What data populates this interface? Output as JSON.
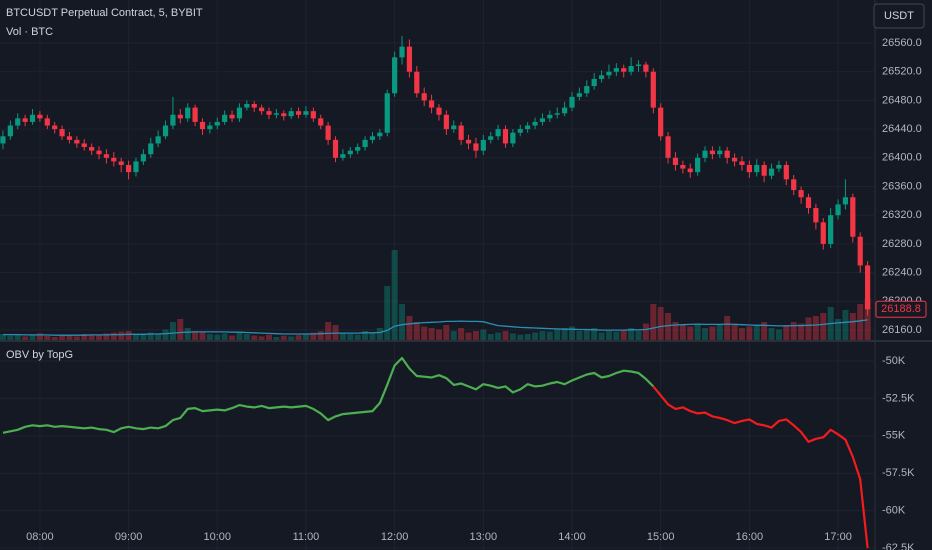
{
  "header": {
    "currency": "USDT"
  },
  "chart_data": [
    {
      "type": "candlestick",
      "title": "BTCUSDT Perpetual Contract, 5, BYBIT",
      "up_color": "#089981",
      "down_color": "#f23645",
      "x": [
        455,
        460,
        465,
        470,
        475,
        480,
        485,
        490,
        495,
        500,
        505,
        510,
        515,
        520,
        525,
        530,
        535,
        540,
        545,
        550,
        555,
        560,
        565,
        570,
        575,
        580,
        585,
        590,
        595,
        600,
        605,
        610,
        615,
        620,
        625,
        630,
        635,
        640,
        645,
        650,
        655,
        660,
        665,
        670,
        675,
        680,
        685,
        690,
        695,
        700,
        705,
        710,
        715,
        720,
        725,
        730,
        735,
        740,
        745,
        750,
        755,
        760,
        765,
        770,
        775,
        780,
        785,
        790,
        795,
        800,
        805,
        810,
        815,
        820,
        825,
        830,
        835,
        840,
        845,
        850,
        855,
        860,
        865,
        870,
        875,
        880,
        885,
        890,
        895,
        900,
        905,
        910,
        915,
        920,
        925,
        930,
        935,
        940,
        945,
        950,
        955,
        960,
        965,
        970,
        975,
        980,
        985,
        990,
        995,
        1000,
        1005,
        1010,
        1015,
        1020,
        1025,
        1030,
        1035,
        1040
      ],
      "open": [
        26420,
        26430,
        26445,
        26455,
        26450,
        26460,
        26455,
        26445,
        26440,
        26430,
        26425,
        26420,
        26415,
        26410,
        26405,
        26400,
        26395,
        26390,
        26380,
        26395,
        26405,
        26420,
        26430,
        26445,
        26460,
        26455,
        26470,
        26450,
        26440,
        26445,
        26450,
        26460,
        26455,
        26470,
        26475,
        26470,
        26465,
        26460,
        26462,
        26458,
        26465,
        26460,
        26465,
        26455,
        26445,
        26425,
        26400,
        26405,
        26410,
        26415,
        26425,
        26430,
        26435,
        26490,
        26540,
        26555,
        26520,
        26490,
        26480,
        26470,
        26460,
        26440,
        26445,
        26425,
        26420,
        26410,
        26425,
        26430,
        26440,
        26420,
        26435,
        26440,
        26445,
        26450,
        26455,
        26460,
        26462,
        26470,
        26485,
        26490,
        26500,
        26510,
        26515,
        26520,
        26525,
        26520,
        26528,
        26530,
        26520,
        26470,
        26430,
        26400,
        26390,
        26385,
        26380,
        26400,
        26410,
        26405,
        26410,
        26400,
        26395,
        26390,
        26380,
        26390,
        26375,
        26385,
        26390,
        26370,
        26355,
        26345,
        26330,
        26310,
        26280,
        26320,
        26335,
        26345,
        26290,
        26250
      ],
      "high": [
        26438,
        26452,
        26462,
        26460,
        26468,
        26465,
        26460,
        26450,
        26445,
        26436,
        26430,
        26426,
        26420,
        26416,
        26412,
        26408,
        26400,
        26396,
        26400,
        26412,
        26428,
        26438,
        26452,
        26485,
        26468,
        26476,
        26474,
        26455,
        26450,
        26456,
        26466,
        26466,
        26476,
        26480,
        26479,
        26474,
        26470,
        26468,
        26466,
        26470,
        26470,
        26472,
        26470,
        26460,
        26450,
        26430,
        26412,
        26415,
        26420,
        26430,
        26436,
        26440,
        26495,
        26548,
        26570,
        26565,
        26528,
        26498,
        26488,
        26475,
        26466,
        26452,
        26450,
        26432,
        26428,
        26432,
        26436,
        26446,
        26445,
        26440,
        26446,
        26450,
        26456,
        26462,
        26466,
        26470,
        26478,
        26492,
        26498,
        26508,
        26518,
        26522,
        26530,
        26532,
        26530,
        26540,
        26536,
        26534,
        26525,
        26476,
        26436,
        26408,
        26396,
        26392,
        26406,
        26416,
        26416,
        26416,
        26415,
        26406,
        26402,
        26396,
        26398,
        26395,
        26392,
        26396,
        26395,
        26376,
        26360,
        26350,
        26336,
        26316,
        26330,
        26342,
        26370,
        26350,
        26296,
        26256
      ],
      "low": [
        26412,
        26425,
        26440,
        26444,
        26446,
        26450,
        26440,
        26434,
        26425,
        26420,
        26414,
        26410,
        26404,
        26398,
        26392,
        26388,
        26380,
        26370,
        26374,
        26390,
        26400,
        26415,
        26426,
        26440,
        26448,
        26450,
        26444,
        26432,
        26434,
        26440,
        26446,
        26450,
        26450,
        26466,
        26464,
        26460,
        26454,
        26455,
        26452,
        26454,
        26455,
        26456,
        26450,
        26440,
        26418,
        26394,
        26396,
        26400,
        26405,
        26410,
        26420,
        26425,
        26430,
        26485,
        26530,
        26512,
        26484,
        26472,
        26462,
        26452,
        26432,
        26435,
        26418,
        26412,
        26400,
        26404,
        26420,
        26425,
        26414,
        26415,
        26430,
        26435,
        26440,
        26445,
        26450,
        26455,
        26458,
        26465,
        26480,
        26485,
        26495,
        26505,
        26510,
        26514,
        26512,
        26515,
        26520,
        26512,
        26462,
        26424,
        26392,
        26382,
        26378,
        26372,
        26375,
        26394,
        26398,
        26400,
        26392,
        26388,
        26382,
        26372,
        26374,
        26366,
        26370,
        26380,
        26362,
        26348,
        26336,
        26322,
        26300,
        26272,
        26274,
        26314,
        26328,
        26282,
        26240,
        26180
      ],
      "close": [
        26430,
        26445,
        26455,
        26450,
        26460,
        26455,
        26445,
        26440,
        26430,
        26425,
        26420,
        26415,
        26410,
        26405,
        26400,
        26395,
        26390,
        26380,
        26395,
        26405,
        26420,
        26430,
        26445,
        26460,
        26455,
        26470,
        26450,
        26440,
        26445,
        26450,
        26460,
        26455,
        26470,
        26475,
        26470,
        26465,
        26460,
        26462,
        26458,
        26465,
        26460,
        26465,
        26455,
        26445,
        26425,
        26400,
        26405,
        26410,
        26415,
        26425,
        26430,
        26435,
        26490,
        26540,
        26555,
        26520,
        26490,
        26480,
        26470,
        26460,
        26440,
        26445,
        26425,
        26420,
        26410,
        26425,
        26430,
        26440,
        26420,
        26435,
        26440,
        26445,
        26450,
        26455,
        26460,
        26462,
        26470,
        26485,
        26490,
        26500,
        26510,
        26515,
        26520,
        26525,
        26520,
        26528,
        26530,
        26520,
        26470,
        26430,
        26400,
        26390,
        26385,
        26380,
        26400,
        26410,
        26405,
        26410,
        26400,
        26395,
        26390,
        26380,
        26390,
        26375,
        26385,
        26390,
        26370,
        26355,
        26345,
        26330,
        26310,
        26280,
        26320,
        26335,
        26345,
        26290,
        26250,
        26188.8
      ],
      "xlim": [
        453,
        1045
      ],
      "ylim": [
        26146,
        26620
      ],
      "yticks": [
        {
          "value": 26160,
          "label": "26160.0"
        },
        {
          "value": 26200,
          "label": "26200.0"
        },
        {
          "value": 26240,
          "label": "26240.0"
        },
        {
          "value": 26280,
          "label": "26280.0"
        },
        {
          "value": 26320,
          "label": "26320.0"
        },
        {
          "value": 26360,
          "label": "26360.0"
        },
        {
          "value": 26400,
          "label": "26400.0"
        },
        {
          "value": 26440,
          "label": "26440.0"
        },
        {
          "value": 26480,
          "label": "26480.0"
        },
        {
          "value": 26520,
          "label": "26520.0"
        },
        {
          "value": 26560,
          "label": "26560.0"
        }
      ],
      "grid": true
    },
    {
      "type": "volume",
      "title": "Vol · BTC",
      "up_color": "rgba(8,153,129,0.38)",
      "down_color": "rgba(242,54,69,0.38)",
      "ma_color": "#2a8fb5",
      "values": [
        20,
        15,
        18,
        12,
        15,
        22,
        14,
        10,
        16,
        18,
        12,
        20,
        15,
        18,
        22,
        25,
        28,
        30,
        18,
        22,
        25,
        20,
        35,
        60,
        70,
        40,
        30,
        25,
        20,
        18,
        22,
        15,
        28,
        20,
        15,
        12,
        18,
        10,
        14,
        12,
        16,
        18,
        25,
        30,
        60,
        50,
        25,
        20,
        18,
        30,
        22,
        40,
        180,
        300,
        120,
        80,
        60,
        45,
        40,
        35,
        50,
        30,
        40,
        25,
        30,
        35,
        20,
        25,
        30,
        22,
        18,
        20,
        25,
        30,
        28,
        35,
        40,
        45,
        30,
        35,
        40,
        25,
        30,
        28,
        35,
        40,
        30,
        55,
        120,
        110,
        90,
        60,
        50,
        45,
        55,
        40,
        45,
        50,
        80,
        55,
        40,
        45,
        50,
        60,
        40,
        35,
        50,
        60,
        55,
        75,
        80,
        90,
        110,
        70,
        100,
        90,
        120,
        140
      ],
      "ma_values": [
        18,
        18,
        18,
        17,
        17,
        17,
        17,
        16,
        16,
        16,
        16,
        16,
        17,
        17,
        17,
        18,
        18,
        19,
        19,
        19,
        20,
        20,
        21,
        23,
        25,
        26,
        27,
        27,
        27,
        27,
        27,
        26,
        26,
        25,
        24,
        23,
        22,
        21,
        20,
        20,
        20,
        20,
        20,
        21,
        22,
        23,
        23,
        23,
        23,
        24,
        24,
        25,
        32,
        46,
        51,
        54,
        56,
        58,
        59,
        60,
        62,
        62,
        63,
        62,
        62,
        61,
        54,
        48,
        46,
        44,
        42,
        41,
        40,
        39,
        38,
        37,
        36,
        36,
        35,
        35,
        34,
        33,
        33,
        33,
        33,
        34,
        34,
        35,
        40,
        45,
        48,
        50,
        51,
        52,
        53,
        52,
        52,
        52,
        53,
        52,
        51,
        50,
        49,
        49,
        48,
        47,
        47,
        48,
        48,
        49,
        50,
        52,
        55,
        57,
        59,
        61,
        64,
        67
      ]
    },
    {
      "type": "line",
      "title": "OBV by TopG",
      "series": [
        {
          "color": "#4caf50",
          "values": [
            -54800,
            -54700,
            -54600,
            -54400,
            -54300,
            -54350,
            -54300,
            -54400,
            -54350,
            -54400,
            -54450,
            -54500,
            -54450,
            -54550,
            -54600,
            -54750,
            -54500,
            -54400,
            -54500,
            -54550,
            -54450,
            -54500,
            -54350,
            -53950,
            -53800,
            -53200,
            -53150,
            -53350,
            -53300,
            -53250,
            -53300,
            -53150,
            -52950,
            -53050,
            -53100,
            -53000,
            -53150,
            -53100,
            -53050,
            -53100,
            -53050,
            -53000,
            -53200,
            -53500,
            -53950,
            -53700,
            -53550,
            -53500,
            -53450,
            -53400,
            -53350,
            -52800,
            -51600,
            -50300,
            -49800,
            -50500,
            -51000,
            -51050,
            -51100,
            -50950,
            -51150,
            -51600,
            -51500,
            -51700,
            -51900,
            -51550,
            -51650,
            -51800,
            -51700,
            -52100,
            -51900,
            -51550,
            -51700,
            -51650,
            -51500,
            -51400,
            -51550,
            -51300,
            -51100,
            -50900,
            -50800,
            -51100,
            -51000,
            -50800,
            -50650,
            -50700,
            -50800,
            -51200,
            -51700,
            null,
            null,
            null,
            null,
            null,
            null,
            null,
            null,
            null,
            null,
            null,
            null,
            null,
            null,
            null,
            null,
            null,
            null,
            null,
            null,
            null,
            null,
            null,
            null,
            null,
            null,
            null,
            null,
            null
          ]
        },
        {
          "color": "#f21c1c",
          "values": [
            null,
            null,
            null,
            null,
            null,
            null,
            null,
            null,
            null,
            null,
            null,
            null,
            null,
            null,
            null,
            null,
            null,
            null,
            null,
            null,
            null,
            null,
            null,
            null,
            null,
            null,
            null,
            null,
            null,
            null,
            null,
            null,
            null,
            null,
            null,
            null,
            null,
            null,
            null,
            null,
            null,
            null,
            null,
            null,
            null,
            null,
            null,
            null,
            null,
            null,
            null,
            null,
            null,
            null,
            null,
            null,
            null,
            null,
            null,
            null,
            null,
            null,
            null,
            null,
            null,
            null,
            null,
            null,
            null,
            null,
            null,
            null,
            null,
            null,
            null,
            null,
            null,
            null,
            null,
            null,
            null,
            null,
            null,
            null,
            null,
            null,
            null,
            null,
            -51700,
            -52300,
            -52900,
            -53200,
            -53100,
            -53350,
            -53500,
            -53450,
            -53700,
            -53800,
            -53950,
            -54150,
            -54000,
            -53900,
            -54200,
            -54300,
            -54450,
            -54000,
            -53900,
            -54300,
            -54750,
            -55400,
            -55200,
            -55100,
            -54600,
            -54900,
            -55250,
            -56400,
            -57900,
            -62500
          ]
        }
      ],
      "xlim": [
        453,
        1045
      ],
      "ylim": [
        -62630,
        -48730
      ],
      "yticks": [
        {
          "value": -50000,
          "label": "-50K"
        },
        {
          "value": -52500,
          "label": "-52.5K"
        },
        {
          "value": -55000,
          "label": "-55K"
        },
        {
          "value": -57500,
          "label": "-57.5K"
        },
        {
          "value": -60000,
          "label": "-60K"
        },
        {
          "value": -62500,
          "label": "-62.5K"
        }
      ],
      "xticks": [
        {
          "value": 480,
          "label": "08:00"
        },
        {
          "value": 540,
          "label": "09:00"
        },
        {
          "value": 600,
          "label": "10:00"
        },
        {
          "value": 660,
          "label": "11:00"
        },
        {
          "value": 720,
          "label": "12:00"
        },
        {
          "value": 780,
          "label": "13:00"
        },
        {
          "value": 840,
          "label": "14:00"
        },
        {
          "value": 900,
          "label": "15:00"
        },
        {
          "value": 960,
          "label": "16:00"
        },
        {
          "value": 1020,
          "label": "17:00"
        }
      ],
      "grid": true
    }
  ]
}
